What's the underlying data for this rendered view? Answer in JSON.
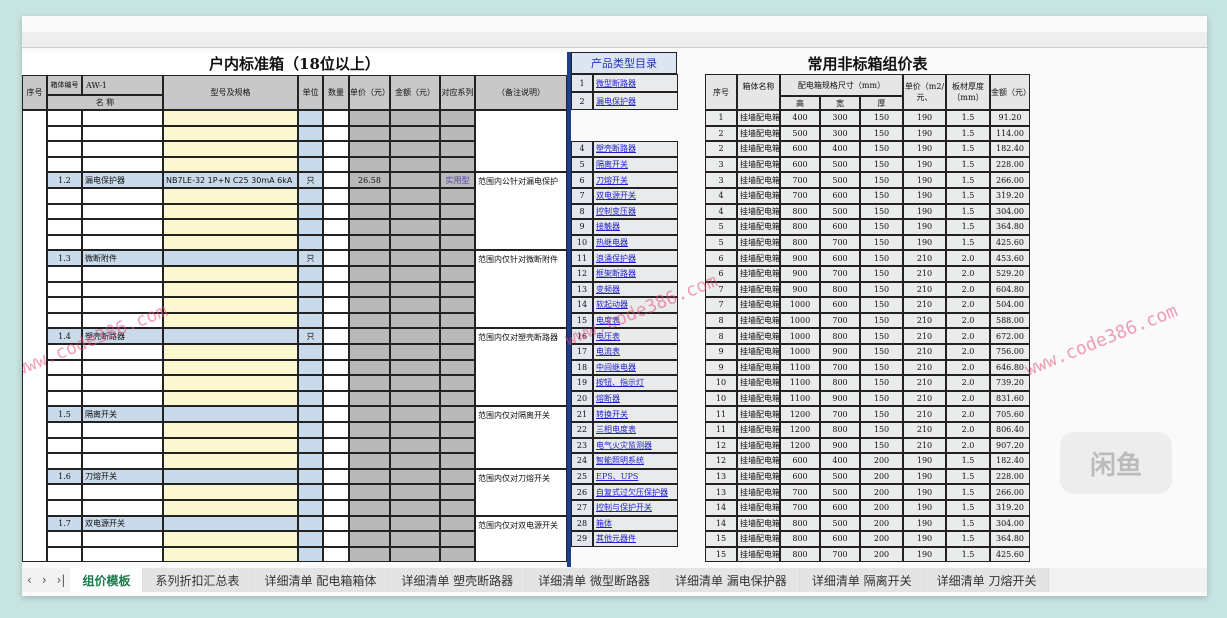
{
  "left_table": {
    "title": "户内标准箱（18位以上）",
    "headers": {
      "seq": "序号",
      "box_no": "箱体编号",
      "box_code": "AW-1",
      "name": "名 称",
      "model": "型号及规格",
      "unit": "单位",
      "qty": "数量",
      "price": "单价（元）",
      "amount": "金额（元）",
      "series": "对应系列",
      "remark": "（备注说明）"
    },
    "sections": [
      {
        "row": 4,
        "no": "1.2",
        "name": "漏电保护器",
        "model": "NB7LE-32 1P+N C25 30mA 6kA",
        "unit": "只",
        "price": "26.58",
        "series": "实用型",
        "remark": "范围内公针对漏电保护"
      },
      {
        "row": 9,
        "no": "1.3",
        "name": "微断附件",
        "unit": "只",
        "remark": "范围内仅针对微断附件"
      },
      {
        "row": 14,
        "no": "1.4",
        "name": "塑壳断路器",
        "unit": "只",
        "remark": "范围内仅对塑壳断路器"
      },
      {
        "row": 19,
        "no": "1.5",
        "name": "隔离开关",
        "remark": "范围内仅对隔离开关"
      },
      {
        "row": 23,
        "no": "1.6",
        "name": "刀熔开关",
        "remark": "范围内仅对刀熔开关"
      },
      {
        "row": 26,
        "no": "1.7",
        "name": "双电源开关",
        "remark": "范围内仅对双电源开关"
      }
    ]
  },
  "catalog": {
    "title": "产品类型目录",
    "items": [
      [
        "1",
        "微型断路器"
      ],
      [
        "2",
        "漏电保护器"
      ],
      [
        "4",
        "塑壳断路器"
      ],
      [
        "5",
        "隔离开关"
      ],
      [
        "6",
        "刀熔开关"
      ],
      [
        "7",
        "双电源开关"
      ],
      [
        "8",
        "控制变压器"
      ],
      [
        "9",
        "接触器"
      ],
      [
        "10",
        "热继电器"
      ],
      [
        "11",
        "浪涌保护器"
      ],
      [
        "12",
        "框架断路器"
      ],
      [
        "13",
        "变频器"
      ],
      [
        "14",
        "软起动器"
      ],
      [
        "15",
        "电度表"
      ],
      [
        "16",
        "电压表"
      ],
      [
        "17",
        "电流表"
      ],
      [
        "18",
        "中间继电器"
      ],
      [
        "19",
        "按钮、指示灯"
      ],
      [
        "20",
        "熔断器"
      ],
      [
        "21",
        "转换开关"
      ],
      [
        "22",
        "三相电度表"
      ],
      [
        "23",
        "电气火灾监测器"
      ],
      [
        "24",
        "智能照明系统"
      ],
      [
        "25",
        "EPS、UPS"
      ],
      [
        "26",
        "自复式过欠压保护器"
      ],
      [
        "27",
        "控制与保护开关"
      ],
      [
        "28",
        "箱体"
      ],
      [
        "29",
        "其他元器件"
      ]
    ]
  },
  "right_table": {
    "title": "常用非标箱组价表",
    "headers": {
      "seq": "序号",
      "name": "箱体名称",
      "size": "配电箱规格尺寸（mm）",
      "h": "高",
      "w": "宽",
      "d": "厚",
      "price": "单价（m2/元、",
      "thick": "板材厚度（mm）",
      "amount": "金额（元）"
    },
    "box_name": "挂墙配电箱",
    "rows": [
      [
        "1",
        "400",
        "300",
        "150",
        "190",
        "1.5",
        "91.20"
      ],
      [
        "2",
        "500",
        "300",
        "150",
        "190",
        "1.5",
        "114.00"
      ],
      [
        "2",
        "600",
        "400",
        "150",
        "190",
        "1.5",
        "182.40"
      ],
      [
        "3",
        "600",
        "500",
        "150",
        "190",
        "1.5",
        "228.00"
      ],
      [
        "3",
        "700",
        "500",
        "150",
        "190",
        "1.5",
        "266.00"
      ],
      [
        "4",
        "700",
        "600",
        "150",
        "190",
        "1.5",
        "319.20"
      ],
      [
        "4",
        "800",
        "500",
        "150",
        "190",
        "1.5",
        "304.00"
      ],
      [
        "5",
        "800",
        "600",
        "150",
        "190",
        "1.5",
        "364.80"
      ],
      [
        "5",
        "800",
        "700",
        "150",
        "190",
        "1.5",
        "425.60"
      ],
      [
        "6",
        "900",
        "600",
        "150",
        "210",
        "2.0",
        "453.60"
      ],
      [
        "6",
        "900",
        "700",
        "150",
        "210",
        "2.0",
        "529.20"
      ],
      [
        "7",
        "900",
        "800",
        "150",
        "210",
        "2.0",
        "604.80"
      ],
      [
        "7",
        "1000",
        "600",
        "150",
        "210",
        "2.0",
        "504.00"
      ],
      [
        "8",
        "1000",
        "700",
        "150",
        "210",
        "2.0",
        "588.00"
      ],
      [
        "8",
        "1000",
        "800",
        "150",
        "210",
        "2.0",
        "672.00"
      ],
      [
        "9",
        "1000",
        "900",
        "150",
        "210",
        "2.0",
        "756.00"
      ],
      [
        "9",
        "1100",
        "700",
        "150",
        "210",
        "2.0",
        "646.80"
      ],
      [
        "10",
        "1100",
        "800",
        "150",
        "210",
        "2.0",
        "739.20"
      ],
      [
        "10",
        "1100",
        "900",
        "150",
        "210",
        "2.0",
        "831.60"
      ],
      [
        "11",
        "1200",
        "700",
        "150",
        "210",
        "2.0",
        "705.60"
      ],
      [
        "11",
        "1200",
        "800",
        "150",
        "210",
        "2.0",
        "806.40"
      ],
      [
        "12",
        "1200",
        "900",
        "150",
        "210",
        "2.0",
        "907.20"
      ],
      [
        "12",
        "600",
        "400",
        "200",
        "190",
        "1.5",
        "182.40"
      ],
      [
        "13",
        "600",
        "500",
        "200",
        "190",
        "1.5",
        "228.00"
      ],
      [
        "13",
        "700",
        "500",
        "200",
        "190",
        "1.5",
        "266.00"
      ],
      [
        "14",
        "700",
        "600",
        "200",
        "190",
        "1.5",
        "319.20"
      ],
      [
        "14",
        "800",
        "500",
        "200",
        "190",
        "1.5",
        "304.00"
      ],
      [
        "15",
        "800",
        "600",
        "200",
        "190",
        "1.5",
        "364.80"
      ],
      [
        "15",
        "800",
        "700",
        "200",
        "190",
        "1.5",
        "425.60"
      ]
    ]
  },
  "tabs": {
    "nav": [
      "‹",
      "›",
      "›|"
    ],
    "items": [
      "组价模板",
      "系列折扣汇总表",
      "详细清单 配电箱箱体",
      "详细清单 塑壳断路器",
      "详细清单 微型断路器",
      "详细清单 漏电保护器",
      "详细清单 隔离开关",
      "详细清单 刀熔开关"
    ],
    "active": 0
  },
  "watermark": "www.code386.com",
  "logo": "闲鱼",
  "colors": {
    "yellow": "#fbf8d2",
    "blue": "#c9daea",
    "gray": "#b9b9b9",
    "link": "#2222cc",
    "active_tab": "#1a7a4a"
  }
}
